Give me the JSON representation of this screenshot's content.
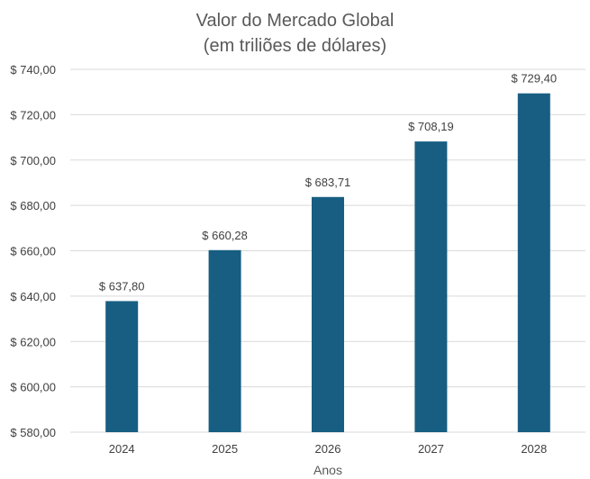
{
  "chart_data": {
    "type": "bar",
    "title": "Valor do Mercado Global",
    "subtitle": "(em triliões de dólares)",
    "xlabel": "Anos",
    "ylabel": "",
    "categories": [
      "2024",
      "2025",
      "2026",
      "2027",
      "2028"
    ],
    "values": [
      637.8,
      660.28,
      683.71,
      708.19,
      729.4
    ],
    "data_labels": [
      "$ 637,80",
      "$ 660,28",
      "$ 683,71",
      "$ 708,19",
      "$ 729,40"
    ],
    "ylim": [
      580,
      740
    ],
    "yticks": [
      580,
      600,
      620,
      640,
      660,
      680,
      700,
      720,
      740
    ],
    "ytick_labels": [
      "$ 580,00",
      "$ 600,00",
      "$ 620,00",
      "$ 640,00",
      "$ 660,00",
      "$ 680,00",
      "$ 700,00",
      "$ 720,00",
      "$ 740,00"
    ],
    "grid": true,
    "legend": "none",
    "colors": {
      "bar": "#175E82",
      "grid": "#D9D9D9",
      "text": "#404040",
      "title": "#595959"
    }
  }
}
